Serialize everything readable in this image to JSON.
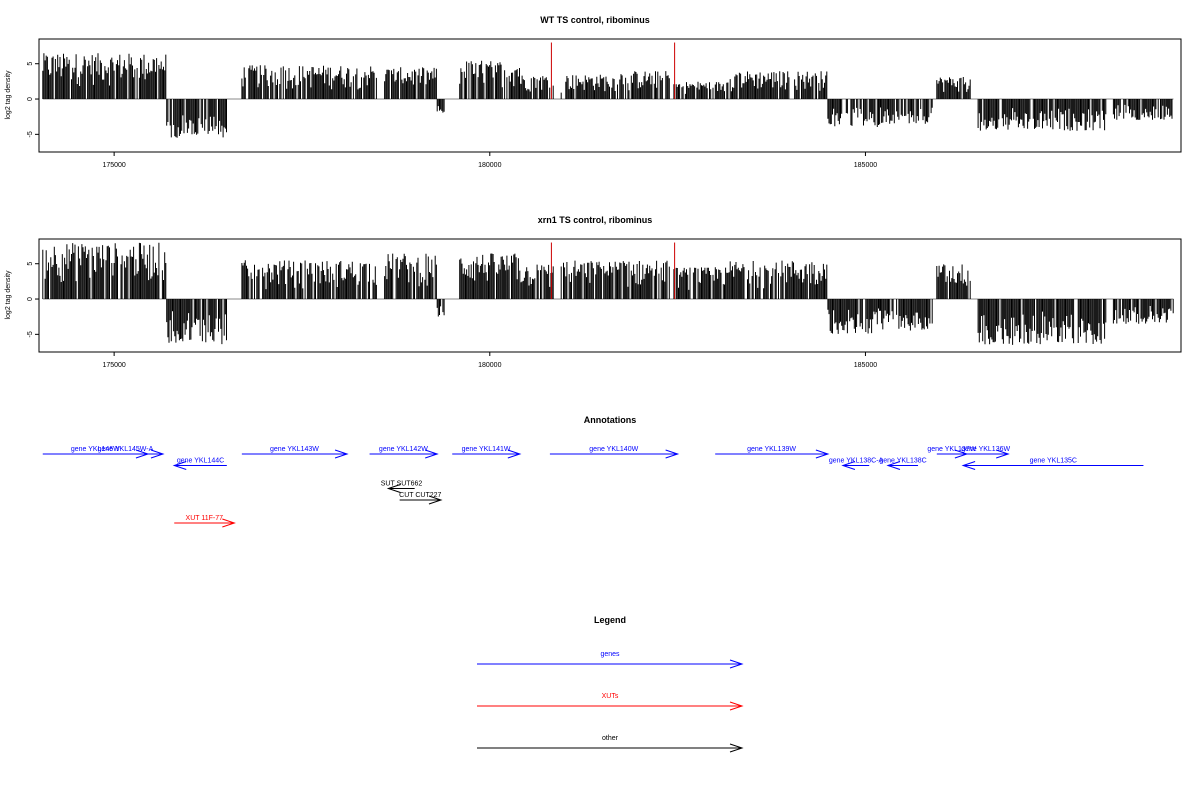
{
  "chart_data": [
    {
      "type": "bar",
      "title": "WT TS control, ribominus",
      "xlabel": "",
      "ylabel": "log2 tag density",
      "xlim": [
        174000,
        189200
      ],
      "ylim": [
        -7.5,
        8.5
      ],
      "xticks": [
        175000,
        180000,
        185000
      ],
      "yticks": [
        -5,
        0,
        5
      ],
      "ytick_labels": [
        "-5",
        "0",
        "5"
      ],
      "series": [
        {
          "color": "#000000",
          "segments": [
            {
              "x0": 174050,
              "x1": 175700,
              "sign": 1,
              "amp": 6.5
            },
            {
              "x0": 175700,
              "x1": 176500,
              "sign": -1,
              "amp": 5.5
            },
            {
              "x0": 176700,
              "x1": 178500,
              "sign": 1,
              "amp": 4.8
            },
            {
              "x0": 178600,
              "x1": 179300,
              "sign": 1,
              "amp": 4.5
            },
            {
              "x0": 179300,
              "x1": 179400,
              "sign": -1,
              "amp": 2.0
            },
            {
              "x0": 179600,
              "x1": 180400,
              "sign": 1,
              "amp": 5.5
            },
            {
              "x0": 180400,
              "x1": 180850,
              "sign": 1,
              "amp": 3.5
            },
            {
              "x0": 180950,
              "x1": 181700,
              "sign": 1,
              "amp": 3.5
            },
            {
              "x0": 181700,
              "x1": 182400,
              "sign": 1,
              "amp": 4.0
            },
            {
              "x0": 182450,
              "x1": 183200,
              "sign": 1,
              "amp": 2.5
            },
            {
              "x0": 183200,
              "x1": 184500,
              "sign": 1,
              "amp": 4.0
            },
            {
              "x0": 184500,
              "x1": 185200,
              "sign": -1,
              "amp": 4.0
            },
            {
              "x0": 185200,
              "x1": 185900,
              "sign": -1,
              "amp": 3.5
            },
            {
              "x0": 185950,
              "x1": 186400,
              "sign": 1,
              "amp": 3.2
            },
            {
              "x0": 186500,
              "x1": 188200,
              "sign": -1,
              "amp": 4.5
            },
            {
              "x0": 188300,
              "x1": 189100,
              "sign": -1,
              "amp": 3.0
            }
          ]
        },
        {
          "color": "#cc0000",
          "spikes": [
            {
              "x": 180820,
              "value": 8.0
            },
            {
              "x": 182460,
              "value": 8.0
            }
          ]
        }
      ]
    },
    {
      "type": "bar",
      "title": "xrn1 TS control, ribominus",
      "xlabel": "",
      "ylabel": "log2 tag density",
      "xlim": [
        174000,
        189200
      ],
      "ylim": [
        -7.5,
        8.5
      ],
      "xticks": [
        175000,
        180000,
        185000
      ],
      "yticks": [
        -5,
        0,
        5
      ],
      "ytick_labels": [
        "-5",
        "0",
        "5"
      ],
      "series": [
        {
          "color": "#000000",
          "segments": [
            {
              "x0": 174050,
              "x1": 175700,
              "sign": 1,
              "amp": 8.0
            },
            {
              "x0": 175700,
              "x1": 176500,
              "sign": -1,
              "amp": 6.5
            },
            {
              "x0": 176700,
              "x1": 178500,
              "sign": 1,
              "amp": 5.5
            },
            {
              "x0": 178600,
              "x1": 179300,
              "sign": 1,
              "amp": 6.5
            },
            {
              "x0": 179300,
              "x1": 179400,
              "sign": -1,
              "amp": 2.5
            },
            {
              "x0": 179600,
              "x1": 180400,
              "sign": 1,
              "amp": 6.5
            },
            {
              "x0": 180400,
              "x1": 180850,
              "sign": 1,
              "amp": 5.0
            },
            {
              "x0": 180950,
              "x1": 181700,
              "sign": 1,
              "amp": 5.5
            },
            {
              "x0": 181700,
              "x1": 182400,
              "sign": 1,
              "amp": 5.5
            },
            {
              "x0": 182450,
              "x1": 183200,
              "sign": 1,
              "amp": 4.5
            },
            {
              "x0": 183200,
              "x1": 184500,
              "sign": 1,
              "amp": 5.5
            },
            {
              "x0": 184500,
              "x1": 185200,
              "sign": -1,
              "amp": 5.0
            },
            {
              "x0": 185200,
              "x1": 185900,
              "sign": -1,
              "amp": 4.5
            },
            {
              "x0": 185950,
              "x1": 186400,
              "sign": 1,
              "amp": 5.0
            },
            {
              "x0": 186500,
              "x1": 188200,
              "sign": -1,
              "amp": 6.5
            },
            {
              "x0": 188300,
              "x1": 189100,
              "sign": -1,
              "amp": 3.5
            }
          ]
        },
        {
          "color": "#cc0000",
          "spikes": [
            {
              "x": 180820,
              "value": 8.0
            },
            {
              "x": 182460,
              "value": 8.0
            }
          ]
        }
      ]
    }
  ],
  "annotations": {
    "title": "Annotations",
    "xlim": [
      174000,
      189200
    ],
    "items": [
      {
        "label": "gene YKL146W",
        "x0": 174050,
        "x1": 175450,
        "strand": "+",
        "row": 0,
        "color": "#0000ff"
      },
      {
        "label": "gene YKL145W-A",
        "x0": 174650,
        "x1": 175650,
        "strand": "+",
        "row": 0,
        "color": "#0000ff"
      },
      {
        "label": "gene YKL144C",
        "x0": 175800,
        "x1": 176500,
        "strand": "-",
        "row": 1,
        "color": "#0000ff"
      },
      {
        "label": "gene YKL143W",
        "x0": 176700,
        "x1": 178100,
        "strand": "+",
        "row": 0,
        "color": "#0000ff"
      },
      {
        "label": "gene YKL142W",
        "x0": 178400,
        "x1": 179300,
        "strand": "+",
        "row": 0,
        "color": "#0000ff"
      },
      {
        "label": "gene YKL141W",
        "x0": 179500,
        "x1": 180400,
        "strand": "+",
        "row": 0,
        "color": "#0000ff"
      },
      {
        "label": "gene YKL140W",
        "x0": 180800,
        "x1": 182500,
        "strand": "+",
        "row": 0,
        "color": "#0000ff"
      },
      {
        "label": "gene YKL139W",
        "x0": 183000,
        "x1": 184500,
        "strand": "+",
        "row": 0,
        "color": "#0000ff"
      },
      {
        "label": "gene YKL138C-A",
        "x0": 184700,
        "x1": 185050,
        "strand": "-",
        "row": 1,
        "color": "#0000ff"
      },
      {
        "label": "gene YKL138C",
        "x0": 185300,
        "x1": 185700,
        "strand": "-",
        "row": 1,
        "color": "#0000ff"
      },
      {
        "label": "gene YKL137W",
        "x0": 185950,
        "x1": 186350,
        "strand": "+",
        "row": 0,
        "color": "#0000ff"
      },
      {
        "label": "gene YKL136W",
        "x0": 186300,
        "x1": 186900,
        "strand": "+",
        "row": 0,
        "color": "#0000ff"
      },
      {
        "label": "gene YKL135C",
        "x0": 186300,
        "x1": 188700,
        "strand": "-",
        "row": 1,
        "color": "#0000ff"
      },
      {
        "label": "SUT SUT662",
        "x0": 178650,
        "x1": 179000,
        "strand": "-",
        "row": 3,
        "color": "#000000"
      },
      {
        "label": "CUT CUT227",
        "x0": 178800,
        "x1": 179350,
        "strand": "+",
        "row": 4,
        "color": "#000000"
      },
      {
        "label": "XUT 11F-77",
        "x0": 175800,
        "x1": 176600,
        "strand": "+",
        "row": 6,
        "color": "#ff0000"
      }
    ]
  },
  "legend": {
    "title": "Legend",
    "items": [
      {
        "label": "genes",
        "color": "#0000ff"
      },
      {
        "label": "XUTs",
        "color": "#ff0000"
      },
      {
        "label": "other",
        "color": "#000000"
      }
    ]
  }
}
